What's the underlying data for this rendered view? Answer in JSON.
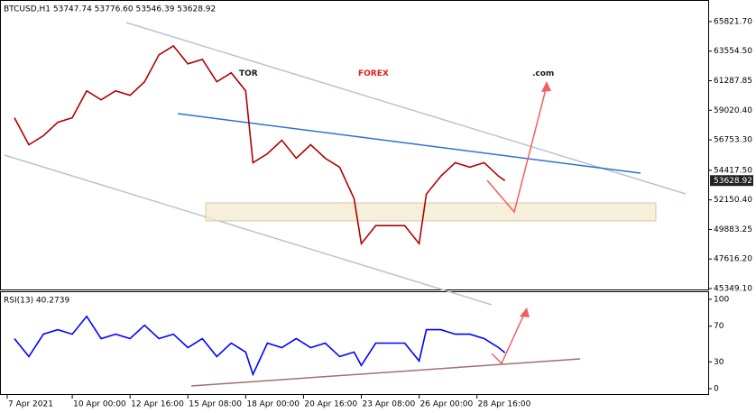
{
  "chart_data": [
    {
      "type": "line",
      "title": "BTCUSD,H1 53747.74 53776.60 53546.39 53628.92",
      "x": [
        8,
        24,
        40,
        56,
        72,
        88,
        104,
        120,
        136,
        152,
        168,
        184,
        200,
        216,
        232,
        248,
        264,
        272,
        288,
        304,
        320,
        336,
        352,
        368,
        384,
        392,
        408,
        424,
        440,
        456,
        464,
        480,
        496,
        512,
        528,
        544,
        551
      ],
      "series": [
        {
          "color": "#b00000",
          "values": [
            58446,
            56378,
            57068,
            58101,
            58446,
            60514,
            59825,
            60514,
            60169,
            61203,
            63271,
            63960,
            62582,
            62927,
            61203,
            61893,
            60514,
            55000,
            55689,
            56723,
            55344,
            56378,
            55344,
            54655,
            52242,
            48796,
            50175,
            50175,
            50175,
            48796,
            52587,
            53966,
            55000,
            54655,
            55000,
            53966,
            53628.92
          ]
        }
      ],
      "last_price": 53628.92,
      "xlim": [
        -8,
        776
      ],
      "ylim": [
        45211,
        67407
      ],
      "xticks": [
        {
          "value": 0,
          "label": "7 Apr 2021"
        },
        {
          "value": 72,
          "label": "10 Apr 00:00"
        },
        {
          "value": 136,
          "label": "12 Apr 16:00"
        },
        {
          "value": 200,
          "label": "15 Apr 08:00"
        },
        {
          "value": 264,
          "label": "18 Apr 00:00"
        },
        {
          "value": 328,
          "label": "20 Apr 16:00"
        },
        {
          "value": 392,
          "label": "23 Apr 08:00"
        },
        {
          "value": 456,
          "label": "26 Apr 00:00"
        },
        {
          "value": 520,
          "label": "28 Apr 16:00"
        }
      ],
      "yticks": [
        {
          "value": 65821.7,
          "label": "65821.70"
        },
        {
          "value": 63554.5,
          "label": "63554.50"
        },
        {
          "value": 61287.85,
          "label": "61287.85"
        },
        {
          "value": 59020.4,
          "label": "59020.40"
        },
        {
          "value": 56753.3,
          "label": "56753.30"
        },
        {
          "value": 54417.5,
          "label": "54417.50"
        },
        {
          "value": 52150.4,
          "label": "52150.40"
        },
        {
          "value": 49883.25,
          "label": "49883.25"
        },
        {
          "value": 47616.2,
          "label": "47616.20"
        },
        {
          "value": 45349.1,
          "label": "45349.10"
        }
      ]
    },
    {
      "type": "line",
      "title": "RSI(13) 40.2739",
      "x": [
        8,
        24,
        40,
        56,
        72,
        88,
        104,
        120,
        136,
        152,
        168,
        184,
        200,
        216,
        232,
        248,
        264,
        272,
        288,
        304,
        320,
        336,
        352,
        368,
        384,
        392,
        408,
        424,
        440,
        456,
        464,
        480,
        496,
        512,
        528,
        544,
        551
      ],
      "series": [
        {
          "color": "#0000ff",
          "values": [
            56,
            36,
            61,
            66,
            61,
            81,
            56,
            61,
            56,
            71,
            56,
            61,
            46,
            56,
            36,
            51,
            41,
            16,
            51,
            46,
            56,
            46,
            51,
            36,
            41,
            26,
            51,
            51,
            51,
            31,
            66,
            66,
            61,
            61,
            56,
            46,
            40.2739
          ]
        }
      ],
      "xlim": [
        -8,
        776
      ],
      "ylim": [
        -7,
        108
      ],
      "yticks": [
        100,
        70,
        30,
        0
      ]
    }
  ],
  "watermark": {
    "tor": "TOR",
    "forex": "FOREX",
    "com": ".com"
  }
}
